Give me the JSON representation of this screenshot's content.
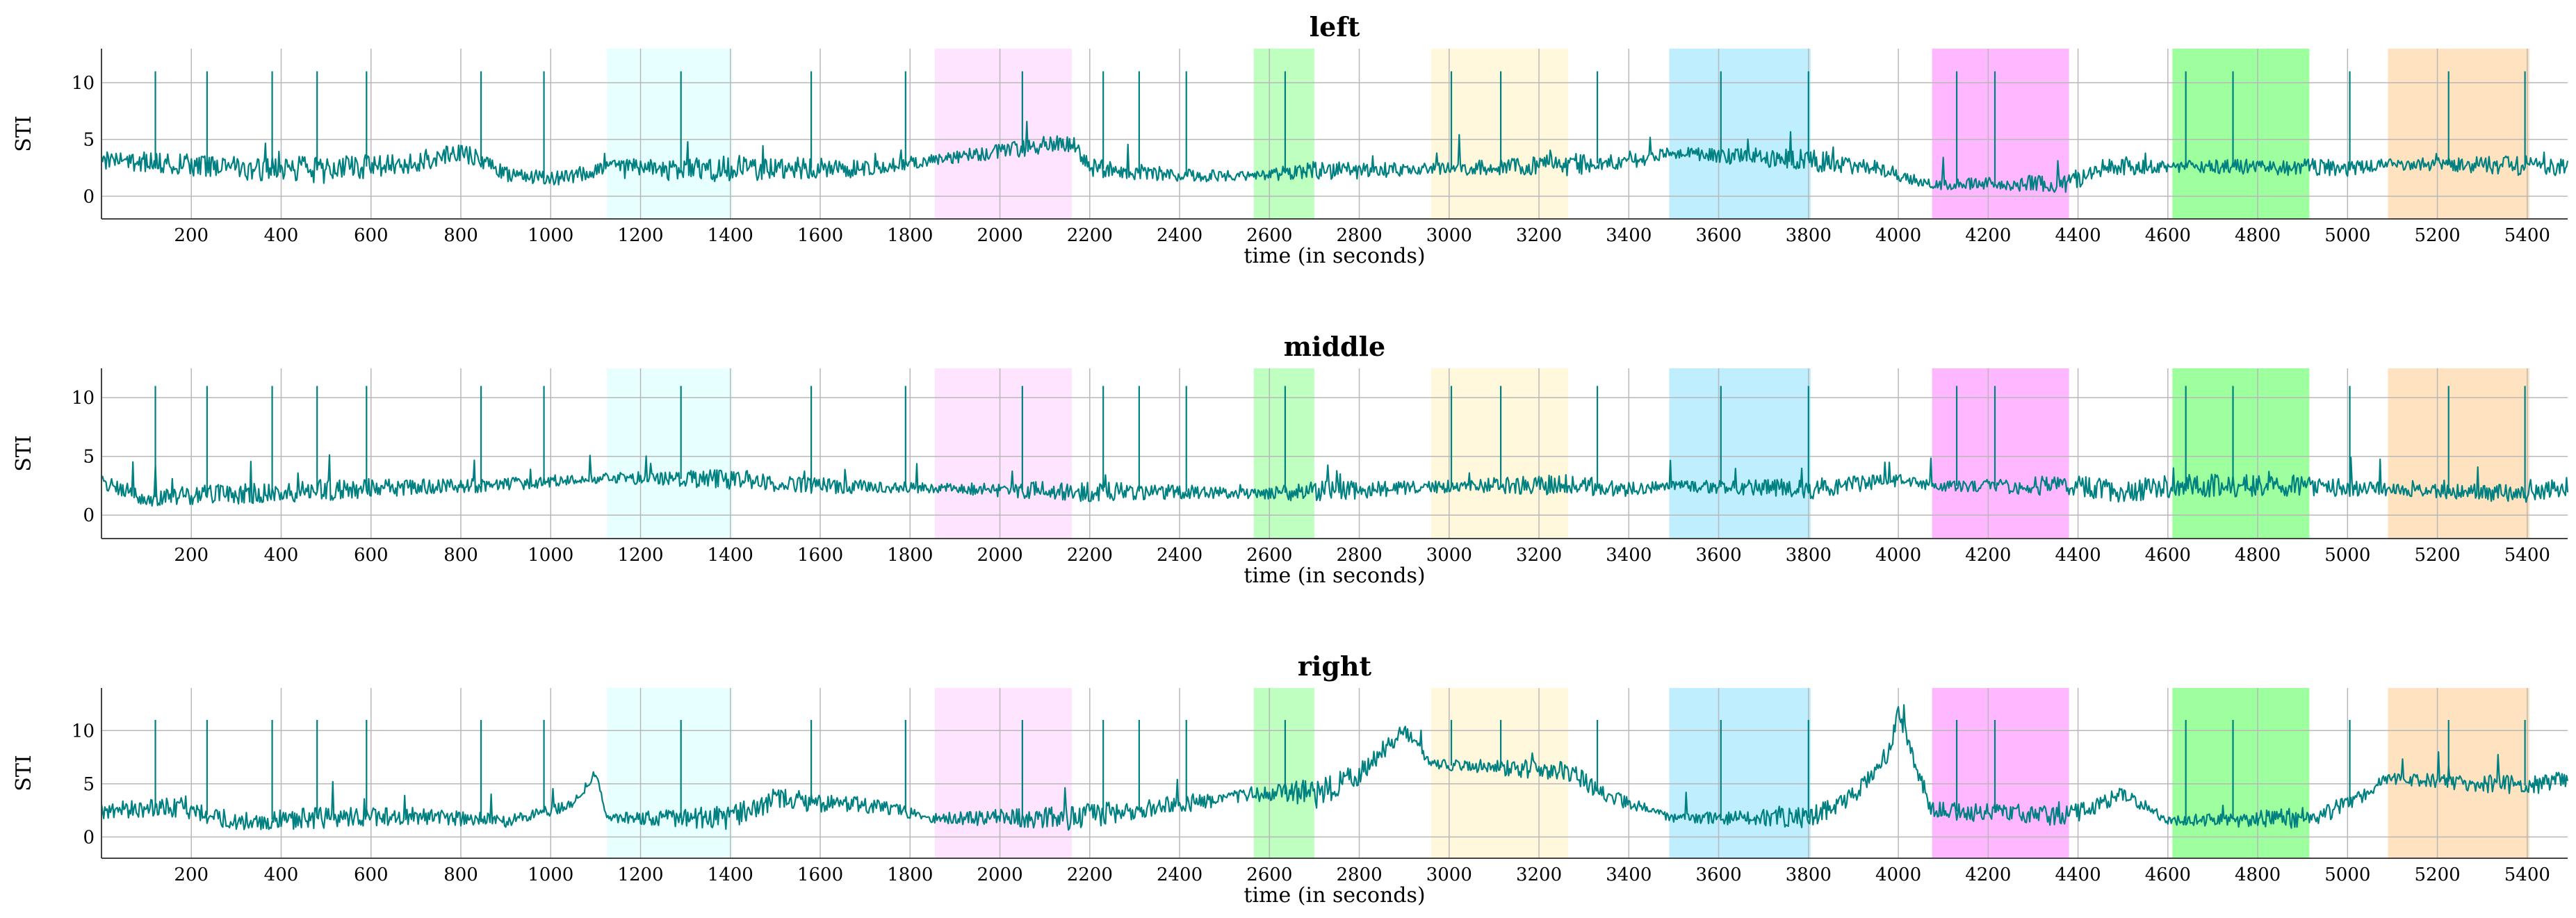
{
  "chart_data": {
    "type": "line",
    "x_label": "time (in seconds)",
    "y_label": "STI",
    "xlim": [
      0,
      5490
    ],
    "x_ticks": [
      200,
      400,
      600,
      800,
      1000,
      1200,
      1400,
      1600,
      1800,
      2000,
      2200,
      2400,
      2600,
      2800,
      3000,
      3200,
      3400,
      3600,
      3800,
      4000,
      4200,
      4400,
      4600,
      4800,
      5000,
      5200,
      5400
    ],
    "y_ticks": [
      0,
      5,
      10
    ],
    "grid": true,
    "line_color": "#008080",
    "spike_times": [
      120,
      235,
      380,
      480,
      590,
      845,
      985,
      1290,
      1580,
      1790,
      2050,
      2230,
      2310,
      2415,
      2635,
      3005,
      3115,
      3330,
      3605,
      3800,
      4130,
      4215,
      4640,
      4745,
      5005,
      5225,
      5395
    ],
    "shaded_intervals": [
      {
        "start": 1125,
        "end": 1405,
        "color": "#e8ffff"
      },
      {
        "start": 1855,
        "end": 2160,
        "color": "#ffe4ff"
      },
      {
        "start": 2565,
        "end": 2700,
        "color": "#bfffbf"
      },
      {
        "start": 2960,
        "end": 3265,
        "color": "#fff8dc"
      },
      {
        "start": 3490,
        "end": 3805,
        "color": "#bfefff"
      },
      {
        "start": 4075,
        "end": 4380,
        "color": "#ffb8ff"
      },
      {
        "start": 4610,
        "end": 4915,
        "color": "#9eff9e"
      },
      {
        "start": 5090,
        "end": 5405,
        "color": "#ffe2bf"
      }
    ],
    "panels": [
      {
        "title": "left",
        "ylim": [
          -2,
          13
        ],
        "baseline": [
          [
            0,
            3.2
          ],
          [
            150,
            2.9
          ],
          [
            300,
            2.5
          ],
          [
            500,
            2.3
          ],
          [
            700,
            3.0
          ],
          [
            800,
            4.0
          ],
          [
            900,
            2.0
          ],
          [
            1000,
            1.5
          ],
          [
            1125,
            2.4
          ],
          [
            1405,
            2.4
          ],
          [
            1500,
            2.5
          ],
          [
            1700,
            2.4
          ],
          [
            1855,
            3.2
          ],
          [
            2160,
            4.8
          ],
          [
            2200,
            2.5
          ],
          [
            2400,
            1.8
          ],
          [
            2565,
            1.8
          ],
          [
            2700,
            2.2
          ],
          [
            2960,
            2.4
          ],
          [
            3265,
            2.8
          ],
          [
            3400,
            3.0
          ],
          [
            3490,
            3.8
          ],
          [
            3805,
            3.2
          ],
          [
            3950,
            2.5
          ],
          [
            4075,
            1.0
          ],
          [
            4380,
            1.2
          ],
          [
            4450,
            2.5
          ],
          [
            4610,
            2.6
          ],
          [
            4915,
            2.6
          ],
          [
            5000,
            2.4
          ],
          [
            5090,
            2.8
          ],
          [
            5405,
            2.7
          ],
          [
            5490,
            2.5
          ]
        ],
        "noise": [
          [
            0,
            0.8
          ],
          [
            500,
            1.2
          ],
          [
            1000,
            0.6
          ],
          [
            1125,
            0.8
          ],
          [
            1405,
            1.2
          ],
          [
            1855,
            0.5
          ],
          [
            2160,
            0.9
          ],
          [
            2565,
            0.4
          ],
          [
            2700,
            0.9
          ],
          [
            2960,
            0.5
          ],
          [
            3265,
            1.0
          ],
          [
            3490,
            0.5
          ],
          [
            3805,
            1.0
          ],
          [
            4075,
            0.4
          ],
          [
            4380,
            0.9
          ],
          [
            4610,
            0.5
          ],
          [
            4915,
            0.8
          ],
          [
            5090,
            0.5
          ],
          [
            5405,
            0.9
          ],
          [
            5490,
            0.7
          ]
        ]
      },
      {
        "title": "middle",
        "ylim": [
          -2,
          12.5
        ],
        "baseline": [
          [
            0,
            3.0
          ],
          [
            100,
            1.5
          ],
          [
            300,
            1.8
          ],
          [
            600,
            2.3
          ],
          [
            800,
            2.5
          ],
          [
            1000,
            2.8
          ],
          [
            1125,
            3.2
          ],
          [
            1405,
            3.0
          ],
          [
            1600,
            2.5
          ],
          [
            1855,
            2.3
          ],
          [
            2160,
            2.0
          ],
          [
            2400,
            2.0
          ],
          [
            2565,
            1.8
          ],
          [
            2700,
            2.0
          ],
          [
            2960,
            2.4
          ],
          [
            3265,
            2.6
          ],
          [
            3400,
            2.2
          ],
          [
            3490,
            2.5
          ],
          [
            3805,
            2.2
          ],
          [
            4000,
            3.0
          ],
          [
            4075,
            2.5
          ],
          [
            4380,
            2.5
          ],
          [
            4500,
            2.0
          ],
          [
            4610,
            2.5
          ],
          [
            4915,
            2.5
          ],
          [
            5090,
            2.2
          ],
          [
            5405,
            1.8
          ],
          [
            5490,
            2.5
          ]
        ],
        "noise": [
          [
            0,
            0.8
          ],
          [
            500,
            0.9
          ],
          [
            1125,
            0.4
          ],
          [
            1405,
            0.9
          ],
          [
            1855,
            0.4
          ],
          [
            2160,
            0.9
          ],
          [
            2565,
            0.4
          ],
          [
            2700,
            0.9
          ],
          [
            2960,
            0.5
          ],
          [
            3265,
            0.9
          ],
          [
            3490,
            0.4
          ],
          [
            3805,
            0.9
          ],
          [
            4075,
            0.4
          ],
          [
            4380,
            0.9
          ],
          [
            4610,
            1.0
          ],
          [
            4915,
            0.9
          ],
          [
            5090,
            0.6
          ],
          [
            5405,
            0.8
          ],
          [
            5490,
            0.8
          ]
        ]
      },
      {
        "title": "right",
        "ylim": [
          -2,
          14
        ],
        "baseline": [
          [
            0,
            2.5
          ],
          [
            150,
            2.8
          ],
          [
            300,
            1.5
          ],
          [
            500,
            1.8
          ],
          [
            700,
            2.0
          ],
          [
            900,
            1.5
          ],
          [
            1050,
            3.0
          ],
          [
            1100,
            6.0
          ],
          [
            1125,
            1.8
          ],
          [
            1405,
            1.8
          ],
          [
            1500,
            3.5
          ],
          [
            1700,
            3.0
          ],
          [
            1855,
            1.8
          ],
          [
            2160,
            1.8
          ],
          [
            2300,
            2.5
          ],
          [
            2565,
            4.0
          ],
          [
            2700,
            4.0
          ],
          [
            2800,
            6.0
          ],
          [
            2900,
            10.0
          ],
          [
            2960,
            6.8
          ],
          [
            3265,
            6.2
          ],
          [
            3350,
            4.0
          ],
          [
            3490,
            1.8
          ],
          [
            3805,
            1.8
          ],
          [
            3900,
            4.0
          ],
          [
            3980,
            8.0
          ],
          [
            4000,
            11.5
          ],
          [
            4075,
            2.5
          ],
          [
            4380,
            2.0
          ],
          [
            4500,
            4.0
          ],
          [
            4610,
            1.5
          ],
          [
            4915,
            1.8
          ],
          [
            5000,
            3.0
          ],
          [
            5090,
            5.5
          ],
          [
            5405,
            4.8
          ],
          [
            5490,
            5.5
          ]
        ],
        "noise": [
          [
            0,
            0.8
          ],
          [
            500,
            1.0
          ],
          [
            1125,
            0.4
          ],
          [
            1405,
            1.2
          ],
          [
            1855,
            0.5
          ],
          [
            2160,
            1.2
          ],
          [
            2565,
            0.6
          ],
          [
            2700,
            1.5
          ],
          [
            2960,
            0.5
          ],
          [
            3265,
            1.0
          ],
          [
            3490,
            0.4
          ],
          [
            3805,
            1.0
          ],
          [
            4075,
            0.8
          ],
          [
            4380,
            1.0
          ],
          [
            4610,
            0.5
          ],
          [
            4915,
            1.0
          ],
          [
            5090,
            0.5
          ],
          [
            5405,
            1.0
          ],
          [
            5490,
            0.8
          ]
        ]
      }
    ]
  }
}
